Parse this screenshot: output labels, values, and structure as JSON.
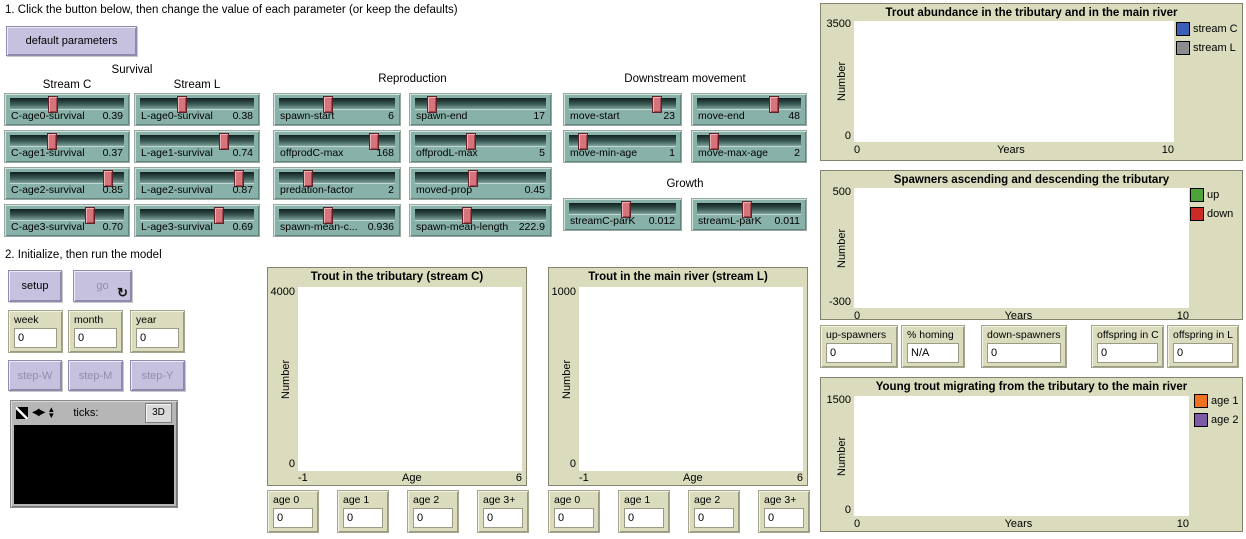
{
  "instructions": {
    "step1": "1. Click the button below, then change the value of each parameter (or keep the defaults)",
    "step2": "2. Initialize, then run the model"
  },
  "buttons": {
    "default_parameters": "default parameters",
    "setup": "setup",
    "go": "go",
    "go_icon": "↻",
    "step_w": "step-W",
    "step_m": "step-M",
    "step_y": "step-Y"
  },
  "view": {
    "ticks_label": "ticks:",
    "threed_button": "3D",
    "icon_left_right": "◀▶",
    "icon_up": "▲",
    "icon_down": "▼"
  },
  "slider_groups": {
    "survival": "Survival",
    "stream_c": "Stream C",
    "stream_l": "Stream L",
    "reproduction": "Reproduction",
    "downstream": "Downstream movement",
    "growth": "Growth"
  },
  "sliders": [
    {
      "label": "C-age0-survival",
      "value": "0.39",
      "frac": 0.38
    },
    {
      "label": "L-age0-survival",
      "value": "0.38",
      "frac": 0.37
    },
    {
      "label": "C-age1-survival",
      "value": "0.37",
      "frac": 0.37
    },
    {
      "label": "L-age1-survival",
      "value": "0.74",
      "frac": 0.74
    },
    {
      "label": "C-age2-survival",
      "value": "0.85",
      "frac": 0.86
    },
    {
      "label": "L-age2-survival",
      "value": "0.87",
      "frac": 0.87
    },
    {
      "label": "C-age3-survival",
      "value": "0.70",
      "frac": 0.7
    },
    {
      "label": "L-age3-survival",
      "value": "0.69",
      "frac": 0.69
    },
    {
      "label": "spawn-start",
      "value": "6",
      "frac": 0.42
    },
    {
      "label": "spawn-end",
      "value": "17",
      "frac": 0.13
    },
    {
      "label": "offprodC-max",
      "value": "168",
      "frac": 0.82
    },
    {
      "label": "offprodL-max",
      "value": "5",
      "frac": 0.43
    },
    {
      "label": "predation-factor",
      "value": "2",
      "frac": 0.25
    },
    {
      "label": "moved-prop",
      "value": "0.45",
      "frac": 0.44
    },
    {
      "label": "spawn-mean-c...",
      "value": "0.936",
      "frac": 0.42
    },
    {
      "label": "spawn-mean-length",
      "value": "222.9",
      "frac": 0.4
    },
    {
      "label": "move-start",
      "value": "23",
      "frac": 0.82
    },
    {
      "label": "move-end",
      "value": "48",
      "frac": 0.74
    },
    {
      "label": "move-min-age",
      "value": "1",
      "frac": 0.13
    },
    {
      "label": "move-max-age",
      "value": "2",
      "frac": 0.16
    },
    {
      "label": "streamC-parK",
      "value": "0.012",
      "frac": 0.53
    },
    {
      "label": "streamL-parK",
      "value": "0.011",
      "frac": 0.48
    }
  ],
  "monitors": {
    "time": [
      {
        "label": "week",
        "value": "0"
      },
      {
        "label": "month",
        "value": "0"
      },
      {
        "label": "year",
        "value": "0"
      }
    ],
    "age_c": [
      {
        "label": "age 0",
        "value": "0"
      },
      {
        "label": "age 1",
        "value": "0"
      },
      {
        "label": "age 2",
        "value": "0"
      },
      {
        "label": "age 3+",
        "value": "0"
      }
    ],
    "age_l": [
      {
        "label": "age 0",
        "value": "0"
      },
      {
        "label": "age 1",
        "value": "0"
      },
      {
        "label": "age 2",
        "value": "0"
      },
      {
        "label": "age 3+",
        "value": "0"
      }
    ],
    "right": [
      {
        "label": "up-spawners",
        "value": "0"
      },
      {
        "label": "% homing",
        "value": "N/A"
      },
      {
        "label": "down-spawners",
        "value": "0"
      },
      {
        "label": "offspring in C",
        "value": "0"
      },
      {
        "label": "offspring in L",
        "value": "0"
      }
    ]
  },
  "plots": {
    "tributary": {
      "title": "Trout in the tributary (stream C)",
      "ylabel": "Number",
      "xlabel": "Age",
      "ymax": "4000",
      "ymin": "0",
      "xmin": "-1",
      "xmax": "6",
      "series": []
    },
    "main_river": {
      "title": "Trout in the main river (stream L)",
      "ylabel": "Number",
      "xlabel": "Age",
      "ymax": "1000",
      "ymin": "0",
      "xmin": "-1",
      "xmax": "6",
      "series": []
    },
    "abundance": {
      "title": "Trout abundance in the tributary and in the main river",
      "ylabel": "Number",
      "xlabel": "Years",
      "ymax": "3500",
      "ymin": "0",
      "xmin": "0",
      "xmax": "10",
      "series": [],
      "legend": [
        {
          "label": "stream C",
          "color": "#3b5fb8"
        },
        {
          "label": "stream L",
          "color": "#8c8c8c"
        }
      ]
    },
    "spawners": {
      "title": "Spawners ascending and descending the tributary",
      "ylabel": "Number",
      "xlabel": "Years",
      "ymax": "500",
      "ymin": "-300",
      "xmin": "0",
      "xmax": "10",
      "series": [],
      "legend": [
        {
          "label": "up",
          "color": "#4da33a"
        },
        {
          "label": "down",
          "color": "#cc2a27"
        }
      ]
    },
    "migrants": {
      "title": "Young trout migrating from the tributary to the main river",
      "ylabel": "Number",
      "xlabel": "Years",
      "ymax": "1500",
      "ymin": "0",
      "xmin": "0",
      "xmax": "10",
      "series": [],
      "legend": [
        {
          "label": "age 1",
          "color": "#ee7020"
        },
        {
          "label": "age 2",
          "color": "#7c5aa8"
        }
      ]
    }
  },
  "colors": {
    "slider_body": "#88b2a9",
    "slider_handle": "#d6737b",
    "button": "#c5c1df",
    "widget": "#dbdcbe"
  }
}
